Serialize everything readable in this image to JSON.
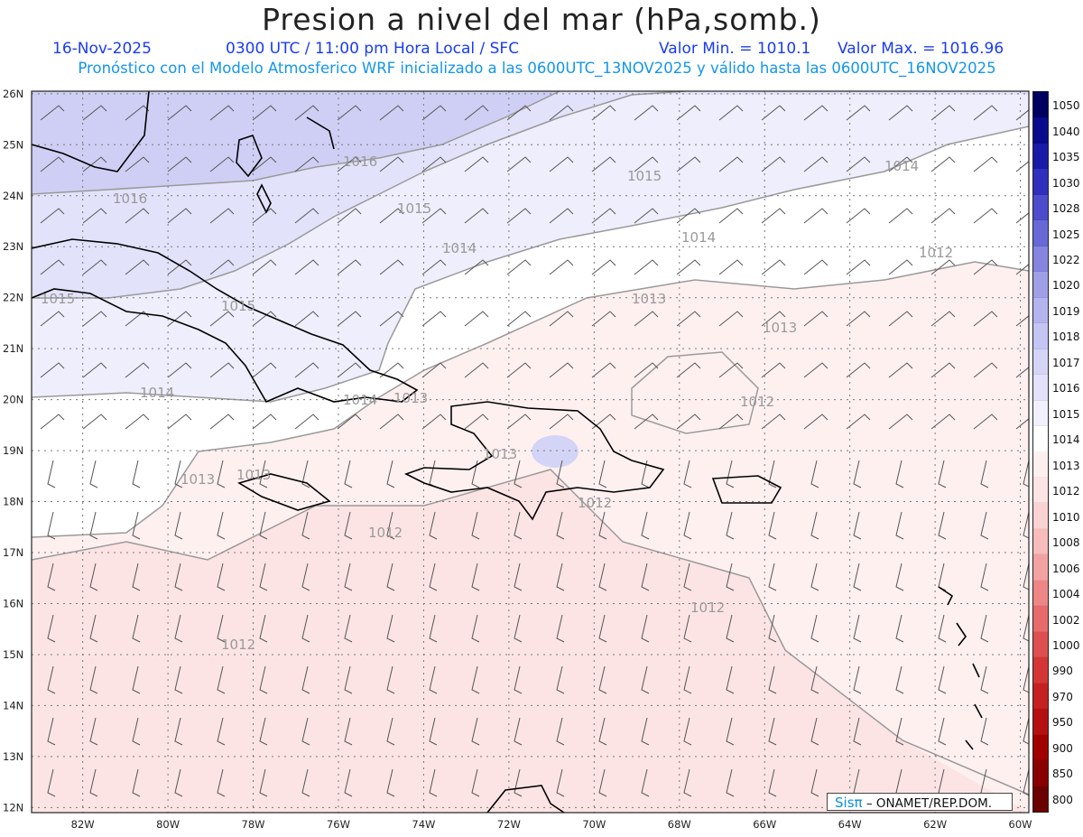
{
  "header": {
    "title": "Presion a nivel del mar (hPa,somb.)",
    "date": "16-Nov-2025",
    "time": "0300 UTC / 11:00 pm Hora Local / SFC",
    "valmin": "Valor Min. = 1010.1",
    "valmax": "Valor Max. = 1016.96",
    "model_line": "Pronóstico con el Modelo Atmosferico WRF inicializado a las 0600UTC_13NOV2025 y válido hasta las  0600UTC_16NOV2025"
  },
  "map": {
    "lon_range": [
      -83.2,
      -59.8
    ],
    "lat_range": [
      11.9,
      26.05
    ],
    "lat_labels": [
      "12N",
      "13N",
      "14N",
      "15N",
      "16N",
      "17N",
      "18N",
      "19N",
      "20N",
      "21N",
      "22N",
      "23N",
      "24N",
      "25N",
      "26N"
    ],
    "lon_labels": [
      "82W",
      "80W",
      "78W",
      "76W",
      "74W",
      "72W",
      "70W",
      "68W",
      "66W",
      "64W",
      "62W",
      "60W"
    ],
    "isobar_labels": [
      {
        "text": "1016"
      },
      {
        "text": "1016"
      },
      {
        "text": "1015"
      },
      {
        "text": "1015"
      },
      {
        "text": "1015"
      },
      {
        "text": "1015"
      },
      {
        "text": "1014"
      },
      {
        "text": "1014"
      },
      {
        "text": "1014"
      },
      {
        "text": "1014"
      },
      {
        "text": "1014"
      },
      {
        "text": "1013"
      },
      {
        "text": "1013"
      },
      {
        "text": "1013"
      },
      {
        "text": "1013"
      },
      {
        "text": "1013"
      },
      {
        "text": "1013"
      },
      {
        "text": "1012"
      },
      {
        "text": "1012"
      },
      {
        "text": "1012"
      },
      {
        "text": "1012"
      },
      {
        "text": "1012"
      },
      {
        "text": "1012"
      }
    ]
  },
  "legend": {
    "levels": [
      "800",
      "850",
      "900",
      "950",
      "970",
      "990",
      "1000",
      "1002",
      "1004",
      "1006",
      "1008",
      "1010",
      "1012",
      "1013",
      "1014",
      "1015",
      "1016",
      "1017",
      "1018",
      "1019",
      "1020",
      "1022",
      "1025",
      "1028",
      "1030",
      "1035",
      "1040",
      "1050"
    ],
    "colors": [
      "#6b0000",
      "#8a0000",
      "#a00000",
      "#b51010",
      "#c72020",
      "#d43535",
      "#de5050",
      "#e76b6b",
      "#ee8686",
      "#f3a2a2",
      "#f7bcbc",
      "#fad2d2",
      "#fde4e4",
      "#fff0f0",
      "#ffffff",
      "#f0f0ff",
      "#e2e2fb",
      "#d4d4f7",
      "#c5c5f4",
      "#b3b3ee",
      "#9f9fe8",
      "#8585e0",
      "#6868d6",
      "#4c4ccc",
      "#3030bc",
      "#1a1aa8",
      "#0a0a8c",
      "#000060"
    ]
  },
  "credit": {
    "brand": "Sisπ",
    "text": "– ONAMET/REP.DOM."
  }
}
